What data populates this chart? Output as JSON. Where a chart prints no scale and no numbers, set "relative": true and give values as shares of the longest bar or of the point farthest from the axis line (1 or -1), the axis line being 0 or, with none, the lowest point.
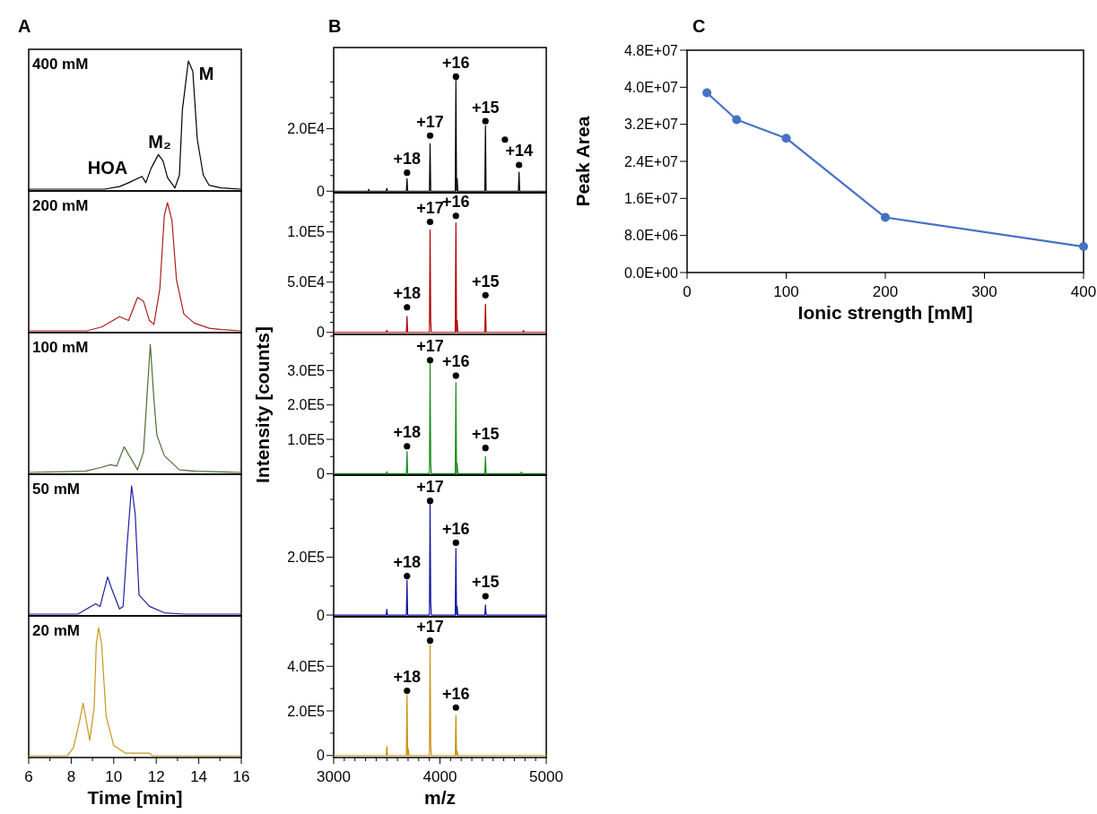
{
  "chart_data": [
    {
      "type": "line",
      "title": "400 mM",
      "relative": true,
      "tick_labels": false,
      "xlim": [
        6,
        16
      ],
      "annotations": [
        "A",
        "HOA",
        "M₂",
        "M"
      ],
      "x": [
        6,
        9.57,
        10.27,
        10.7,
        11.33,
        11.51,
        11.75,
        12.1,
        12.32,
        12.53,
        12.88,
        13.09,
        13.23,
        13.51,
        13.72,
        13.93,
        14.21,
        14.49,
        15.05,
        15.97
      ],
      "series": [
        {
          "color": "#000000",
          "values": [
            0,
            0,
            0.02,
            0.05,
            0.1,
            0.05,
            0.16,
            0.27,
            0.22,
            0.09,
            0.01,
            0.11,
            0.62,
            1,
            0.92,
            0.39,
            0.11,
            0.03,
            0.01,
            0
          ]
        }
      ]
    },
    {
      "type": "line",
      "title": "200 mM",
      "relative": true,
      "tick_labels": false,
      "xlim": [
        6,
        16
      ],
      "x": [
        6,
        8.73,
        9.43,
        9.85,
        10.27,
        10.7,
        11.12,
        11.4,
        11.68,
        11.89,
        12.17,
        12.38,
        12.53,
        12.74,
        12.95,
        13.3,
        13.79,
        14.49,
        15.06,
        15.97
      ],
      "series": [
        {
          "color": "#b01c1c",
          "values": [
            0,
            0,
            0.03,
            0.07,
            0.11,
            0.08,
            0.26,
            0.23,
            0.08,
            0.05,
            0.33,
            0.9,
            1,
            0.86,
            0.4,
            0.13,
            0.06,
            0.02,
            0.01,
            0
          ]
        }
      ]
    },
    {
      "type": "line",
      "title": "100 mM",
      "relative": true,
      "tick_labels": false,
      "xlim": [
        6,
        16
      ],
      "x": [
        6,
        8.66,
        9.43,
        9.85,
        10.14,
        10.49,
        10.7,
        11.12,
        11.4,
        11.57,
        11.72,
        11.89,
        12.03,
        12.38,
        13.09,
        13.86,
        15.97
      ],
      "series": [
        {
          "color": "#4a6e35",
          "values": [
            0,
            0.01,
            0.04,
            0.06,
            0.05,
            0.2,
            0.14,
            0.02,
            0.16,
            0.61,
            1,
            0.57,
            0.29,
            0.13,
            0.02,
            0.01,
            0
          ]
        }
      ]
    },
    {
      "type": "line",
      "title": "50 mM",
      "relative": true,
      "tick_labels": false,
      "xlim": [
        6,
        16
      ],
      "x": [
        6,
        8.31,
        9.15,
        9.36,
        9.71,
        9.92,
        10.27,
        10.44,
        10.63,
        10.84,
        11.01,
        11.19,
        11.68,
        12.38,
        13.3,
        15.97
      ],
      "series": [
        {
          "color": "#1f1fa0",
          "values": [
            0,
            0,
            0.08,
            0.06,
            0.29,
            0.19,
            0.04,
            0.06,
            0.54,
            1,
            0.78,
            0.15,
            0.06,
            0.01,
            0,
            0
          ]
        }
      ]
    },
    {
      "type": "line",
      "title": "20 mM",
      "relative": true,
      "tick_labels": "x",
      "xlim": [
        6,
        16
      ],
      "xlabel": "Time [min]",
      "xticks": [
        6,
        {
          "value": 7,
          "label": null
        },
        8,
        {
          "value": 9,
          "label": null
        },
        10,
        {
          "value": 11,
          "label": null
        },
        12,
        {
          "value": 13,
          "label": null
        },
        14,
        {
          "value": 15,
          "label": null
        },
        16
      ],
      "x": [
        6,
        7.81,
        8.1,
        8.38,
        8.56,
        8.66,
        8.87,
        9.08,
        9.18,
        9.29,
        9.43,
        9.64,
        10,
        10.56,
        11.68,
        11.82,
        15.97
      ],
      "series": [
        {
          "color": "#c8961e",
          "values": [
            0,
            0,
            0.06,
            0.26,
            0.41,
            0.32,
            0.12,
            0.38,
            0.87,
            1,
            0.87,
            0.31,
            0.08,
            0.02,
            0.02,
            0,
            0
          ]
        }
      ]
    },
    {
      "type": "line",
      "tick_labels": "y",
      "xlim": [
        3000,
        5000
      ],
      "ylim": [
        -500,
        46000
      ],
      "annotations": [
        "B",
        "+18",
        "+17",
        "+16",
        "+15",
        "+14"
      ],
      "yticks": [
        {
          "value": 0,
          "label": "0"
        },
        {
          "value": 5000,
          "label": null
        },
        {
          "value": 10000,
          "label": null
        },
        {
          "value": 15000,
          "label": null
        },
        {
          "value": 20000,
          "label": "2.0E4"
        },
        {
          "value": 25000,
          "label": null
        },
        {
          "value": 30000,
          "label": null
        },
        {
          "value": 35000,
          "label": null
        }
      ],
      "series": [
        {
          "color": "#000000",
          "x": [
            3000,
            3324,
            3330,
            3336,
            3494,
            3500,
            3506,
            3684,
            3690,
            3696,
            3901,
            3907,
            3913,
            4144,
            4150,
            4156,
            4162,
            4168,
            4422,
            4428,
            4434,
            4738,
            4744,
            4750,
            5000
          ],
          "values": [
            0,
            0,
            600,
            0,
            0,
            900,
            0,
            0,
            4000,
            0,
            0,
            15200,
            0,
            0,
            35500,
            0,
            4000,
            0,
            0,
            20900,
            0,
            0,
            6100,
            0,
            0
          ]
        },
        {
          "type": "scatter",
          "color": "#000000",
          "x": [
            3690,
            3907,
            4150,
            4428,
            4744,
            4611
          ],
          "values": [
            5900,
            17800,
            36700,
            22400,
            8400,
            16500
          ]
        }
      ]
    },
    {
      "type": "line",
      "tick_labels": "y",
      "xlim": [
        3000,
        5000
      ],
      "ylim": [
        -2000,
        139000
      ],
      "annotations": [
        "+18",
        "+17",
        "+16",
        "+15"
      ],
      "yticks": [
        {
          "value": 0,
          "label": "0"
        },
        {
          "value": 10000,
          "label": null
        },
        {
          "value": 20000,
          "label": null
        },
        {
          "value": 30000,
          "label": null
        },
        {
          "value": 40000,
          "label": null
        },
        {
          "value": 50000,
          "label": "5.0E4"
        },
        {
          "value": 60000,
          "label": null
        },
        {
          "value": 70000,
          "label": null
        },
        {
          "value": 80000,
          "label": null
        },
        {
          "value": 90000,
          "label": null
        },
        {
          "value": 100000,
          "label": "1.0E5"
        },
        {
          "value": 110000,
          "label": null
        },
        {
          "value": 120000,
          "label": null
        },
        {
          "value": 130000,
          "label": null
        }
      ],
      "series": [
        {
          "color": "#b00000",
          "x": [
            3000,
            3494,
            3500,
            3506,
            3684,
            3690,
            3696,
            3901,
            3907,
            3913,
            3919,
            4144,
            4150,
            4156,
            4162,
            4168,
            4422,
            4428,
            4434,
            4780,
            4786,
            4792,
            5000
          ],
          "values": [
            0,
            0,
            2000,
            0,
            0,
            16000,
            0,
            0,
            102000,
            10000,
            0,
            0,
            109000,
            0,
            12000,
            0,
            0,
            28000,
            0,
            0,
            2000,
            0,
            0
          ]
        },
        {
          "type": "scatter",
          "color": "#000000",
          "x": [
            3690,
            3907,
            4150,
            4428
          ],
          "values": [
            25000,
            110000,
            116000,
            37000
          ]
        }
      ]
    },
    {
      "type": "line",
      "tick_labels": "y",
      "xlim": [
        3000,
        5000
      ],
      "ylim": [
        -4000,
        405000
      ],
      "ylabel": "Intensity [counts]",
      "annotations": [
        "+18",
        "+17",
        "+16",
        "+15"
      ],
      "yticks": [
        {
          "value": 0,
          "label": "0"
        },
        {
          "value": 50000,
          "label": null
        },
        {
          "value": 100000,
          "label": "1.0E5"
        },
        {
          "value": 150000,
          "label": null
        },
        {
          "value": 200000,
          "label": "2.0E5"
        },
        {
          "value": 250000,
          "label": null
        },
        {
          "value": 300000,
          "label": "3.0E5"
        },
        {
          "value": 350000,
          "label": null
        },
        {
          "value": 400000,
          "label": null
        }
      ],
      "series": [
        {
          "color": "#1a8a1a",
          "x": [
            3000,
            3494,
            3500,
            3506,
            3684,
            3690,
            3696,
            3901,
            3907,
            3913,
            3919,
            4144,
            4150,
            4156,
            4162,
            4168,
            4422,
            4428,
            4434,
            4760,
            4766,
            4772,
            5000
          ],
          "values": [
            0,
            0,
            6000,
            0,
            0,
            65000,
            0,
            0,
            320000,
            30000,
            0,
            0,
            265000,
            0,
            30000,
            0,
            0,
            50000,
            0,
            0,
            5000,
            0,
            0
          ]
        },
        {
          "type": "scatter",
          "color": "#000000",
          "x": [
            3690,
            3907,
            4150,
            4428
          ],
          "values": [
            80000,
            330000,
            285000,
            75000
          ]
        }
      ]
    },
    {
      "type": "line",
      "tick_labels": "y",
      "xlim": [
        3000,
        5000
      ],
      "ylim": [
        -6000,
        484000
      ],
      "annotations": [
        "+18",
        "+17",
        "+16",
        "+15"
      ],
      "yticks": [
        {
          "value": 0,
          "label": "0"
        },
        {
          "value": 100000,
          "label": null
        },
        {
          "value": 200000,
          "label": "2.0E5"
        },
        {
          "value": 300000,
          "label": null
        },
        {
          "value": 400000,
          "label": null
        }
      ],
      "series": [
        {
          "color": "#1010a0",
          "x": [
            3000,
            3494,
            3500,
            3506,
            3684,
            3690,
            3696,
            3901,
            3907,
            3913,
            3919,
            4144,
            4150,
            4156,
            4162,
            4168,
            4422,
            4428,
            4434,
            5000
          ],
          "values": [
            0,
            0,
            20000,
            0,
            0,
            120000,
            0,
            0,
            385000,
            40000,
            0,
            0,
            230000,
            0,
            30000,
            0,
            0,
            35000,
            0,
            0
          ]
        },
        {
          "type": "scatter",
          "color": "#000000",
          "x": [
            3690,
            3907,
            4150,
            4428
          ],
          "values": [
            135000,
            395000,
            250000,
            65000
          ]
        }
      ]
    },
    {
      "type": "line",
      "xlim": [
        3000,
        5000
      ],
      "ylim": [
        -9000,
        622000
      ],
      "xlabel": "m/z",
      "annotations": [
        "+18",
        "+17",
        "+16"
      ],
      "yticks": [
        {
          "value": 0,
          "label": "0"
        },
        {
          "value": 100000,
          "label": null
        },
        {
          "value": 200000,
          "label": "2.0E5"
        },
        {
          "value": 300000,
          "label": null
        },
        {
          "value": 400000,
          "label": "4.0E5"
        },
        {
          "value": 500000,
          "label": null
        }
      ],
      "xticks": [
        3000,
        {
          "value": 3100,
          "label": null
        },
        {
          "value": 3200,
          "label": null
        },
        {
          "value": 3300,
          "label": null
        },
        {
          "value": 3400,
          "label": null
        },
        {
          "value": 3500,
          "label": null
        },
        {
          "value": 3600,
          "label": null
        },
        {
          "value": 3700,
          "label": null
        },
        {
          "value": 3800,
          "label": null
        },
        {
          "value": 3900,
          "label": null
        },
        4000,
        {
          "value": 4100,
          "label": null
        },
        {
          "value": 4200,
          "label": null
        },
        {
          "value": 4300,
          "label": null
        },
        {
          "value": 4400,
          "label": null
        },
        {
          "value": 4500,
          "label": null
        },
        {
          "value": 4600,
          "label": null
        },
        {
          "value": 4700,
          "label": null
        },
        {
          "value": 4800,
          "label": null
        },
        {
          "value": 4900,
          "label": null
        },
        5000
      ],
      "series": [
        {
          "color": "#c89010",
          "x": [
            3000,
            3494,
            3500,
            3506,
            3684,
            3690,
            3696,
            3702,
            3708,
            3901,
            3907,
            3913,
            3919,
            4144,
            4150,
            4156,
            4162,
            4168,
            5000
          ],
          "values": [
            0,
            0,
            40000,
            0,
            0,
            270000,
            0,
            30000,
            0,
            0,
            495000,
            40000,
            0,
            0,
            180000,
            0,
            20000,
            0,
            0
          ]
        },
        {
          "type": "scatter",
          "color": "#000000",
          "x": [
            3690,
            3907,
            4150
          ],
          "values": [
            290000,
            515000,
            215000
          ]
        }
      ]
    },
    {
      "type": "line",
      "xlabel": "Ionic strength [mM]",
      "ylabel": "Peak Area",
      "marker": "circle",
      "xlim": [
        0,
        400
      ],
      "ylim": [
        0,
        48000000
      ],
      "annotations": [
        "C"
      ],
      "xticks": [
        0,
        100,
        200,
        300,
        400
      ],
      "yticks": [
        {
          "value": 0,
          "label": "0.0E+00"
        },
        {
          "value": 8000000,
          "label": "8.0E+06"
        },
        {
          "value": 16000000,
          "label": "1.6E+07"
        },
        {
          "value": 24000000,
          "label": "2.4E+07"
        },
        {
          "value": 32000000,
          "label": "3.2E+07"
        },
        {
          "value": 40000000,
          "label": "4.0E+07"
        },
        {
          "value": 48000000,
          "label": "4.8E+07"
        }
      ],
      "x": [
        20,
        50,
        100,
        200,
        400
      ],
      "series": [
        {
          "color": "#4472c4",
          "values": [
            38800000,
            33000000,
            29000000,
            11900000,
            5600000
          ]
        }
      ]
    }
  ]
}
